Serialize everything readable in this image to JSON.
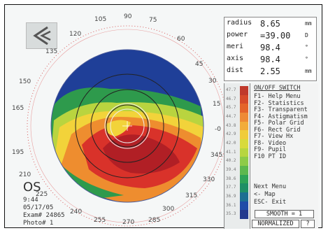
{
  "readout": [
    {
      "label": "radius",
      "value": "8.65",
      "unit": "mm"
    },
    {
      "label": "power",
      "value": "=39.00",
      "unit": "D"
    },
    {
      "label": "meri",
      "value": "98.4",
      "unit": "°"
    },
    {
      "label": "axis",
      "value": "98.4",
      "unit": "°"
    },
    {
      "label": "dist",
      "value": "2.55",
      "unit": "mm"
    }
  ],
  "menu": {
    "title": "ON/OFF SWITCH",
    "items": [
      "F1- Help Menu",
      "F2- Statistics",
      "F3- Transparent",
      "F4- Astigmatism",
      "F5- Polar Grid",
      "F6- Rect Grid",
      "F7- View Hx",
      "F8- Video",
      "F9- Pupil",
      "F10 PT ID"
    ],
    "footer": [
      "Next Menu",
      "<- Map",
      "ESC- Exit"
    ]
  },
  "smooth_label": "SMOOTH = 1",
  "normalized_label": "NORMALIZED",
  "eye": "OS",
  "info": {
    "time": "9:44",
    "date": "05/17/05",
    "exam": "Exam# 24865",
    "photo": "Photo# 1"
  },
  "degree_labels": {
    "d105": "105",
    "d90": "90",
    "d75": "75",
    "d60": "60",
    "d120": "120",
    "d135": "135",
    "d45": "45",
    "d150": "150",
    "d30": "30",
    "d165": "165",
    "d15": "15",
    "d0": "-0",
    "d195": "195",
    "d345": "345",
    "d210": "210",
    "d330": "330",
    "d225": "225",
    "d315": "315",
    "d240": "240",
    "d300": "300",
    "d255": "255",
    "d270": "270",
    "d285": "285"
  },
  "scale": {
    "labels": [
      "47.7",
      "46.7",
      "45.7",
      "44.7",
      "43.8",
      "42.9",
      "42.0",
      "41.1",
      "40.2",
      "39.4",
      "38.6",
      "37.7",
      "36.9",
      "36.1",
      "35.3"
    ],
    "colors": [
      "#c0392b",
      "#d64a2a",
      "#e4642a",
      "#ee8a35",
      "#f2ac3a",
      "#f0cc3a",
      "#d8da3c",
      "#b7d640",
      "#8ecb48",
      "#5db84e",
      "#2fa357",
      "#1f8f66",
      "#1c6e92",
      "#1f4ca8",
      "#243a8e"
    ]
  },
  "colors": {
    "frame": "#f5f7f7",
    "map_blue": "#1f3f98",
    "map_green": "#2e9a4c",
    "map_yellow": "#f2d33a",
    "map_orange": "#ee8d2f",
    "map_red": "#d9322a",
    "map_dark_red": "#b11f25"
  },
  "icons": {
    "logo": "topography-logo-icon",
    "help": "question-icon"
  }
}
